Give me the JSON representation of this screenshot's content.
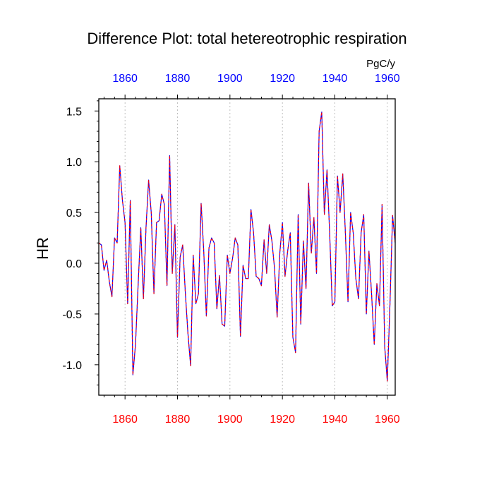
{
  "chart_data": {
    "type": "line",
    "title": "Difference Plot: total hetereotrophic respiration",
    "units": "PgC/y",
    "ylabel": "HR",
    "xlim": [
      1850,
      1963
    ],
    "ylim": [
      -1.3,
      1.62
    ],
    "x_ticks": [
      1860,
      1880,
      1900,
      1920,
      1940,
      1960
    ],
    "y_ticks": [
      1.5,
      1.0,
      0.5,
      0.0,
      -0.5,
      -1.0
    ],
    "y_tick_labels": [
      "1.5",
      "1.0",
      "0.5",
      "0.0",
      "-0.5",
      "-1.0"
    ],
    "x_top_color": "#0000ff",
    "x_bottom_color": "#ff0000",
    "grid": "vertical dotted at major x ticks",
    "series": [
      {
        "color_dash": "#ff0000",
        "color_line": "#0000ff",
        "x": [
          1850,
          1851,
          1852,
          1853,
          1854,
          1855,
          1856,
          1857,
          1858,
          1859,
          1860,
          1861,
          1862,
          1863,
          1864,
          1865,
          1866,
          1867,
          1868,
          1869,
          1870,
          1871,
          1872,
          1873,
          1874,
          1875,
          1876,
          1877,
          1878,
          1879,
          1880,
          1881,
          1882,
          1883,
          1884,
          1885,
          1886,
          1887,
          1888,
          1889,
          1890,
          1891,
          1892,
          1893,
          1894,
          1895,
          1896,
          1897,
          1898,
          1899,
          1900,
          1901,
          1902,
          1903,
          1904,
          1905,
          1906,
          1907,
          1908,
          1909,
          1910,
          1911,
          1912,
          1913,
          1914,
          1915,
          1916,
          1917,
          1918,
          1919,
          1920,
          1921,
          1922,
          1923,
          1924,
          1925,
          1926,
          1927,
          1928,
          1929,
          1930,
          1931,
          1932,
          1933,
          1934,
          1935,
          1936,
          1937,
          1938,
          1939,
          1940,
          1941,
          1942,
          1943,
          1944,
          1945,
          1946,
          1947,
          1948,
          1949,
          1950,
          1951,
          1952,
          1953,
          1954,
          1955,
          1956,
          1957,
          1958,
          1959,
          1960,
          1961,
          1962,
          1963
        ],
        "y": [
          0.2,
          0.18,
          -0.07,
          0.03,
          -0.18,
          -0.33,
          0.25,
          0.2,
          0.96,
          0.62,
          0.4,
          -0.4,
          0.62,
          -1.1,
          -0.8,
          -0.2,
          0.35,
          -0.35,
          0.35,
          0.82,
          0.5,
          -0.3,
          0.4,
          0.42,
          0.68,
          0.58,
          -0.22,
          1.06,
          -0.1,
          0.38,
          -0.73,
          0.06,
          0.18,
          -0.3,
          -0.7,
          -1.01,
          0.08,
          -0.4,
          -0.3,
          0.59,
          0.12,
          -0.52,
          0.15,
          0.25,
          0.2,
          -0.45,
          -0.12,
          -0.6,
          -0.62,
          0.08,
          -0.1,
          0.05,
          0.25,
          0.18,
          -0.72,
          -0.02,
          -0.15,
          -0.15,
          0.53,
          0.3,
          -0.13,
          -0.15,
          -0.22,
          0.23,
          -0.1,
          0.38,
          0.22,
          -0.05,
          -0.53,
          0.1,
          0.4,
          -0.13,
          0.12,
          0.3,
          -0.73,
          -0.88,
          0.48,
          -0.6,
          0.22,
          -0.25,
          0.79,
          0.1,
          0.45,
          -0.1,
          1.3,
          1.49,
          0.48,
          0.92,
          0.3,
          -0.42,
          -0.38,
          0.86,
          0.5,
          0.88,
          0.3,
          -0.38,
          0.5,
          0.3,
          -0.15,
          -0.35,
          0.3,
          0.48,
          -0.5,
          0.12,
          -0.3,
          -0.8,
          -0.2,
          -0.42,
          0.58,
          -0.82,
          -1.16,
          -0.4,
          0.47,
          0.2
        ]
      }
    ]
  }
}
